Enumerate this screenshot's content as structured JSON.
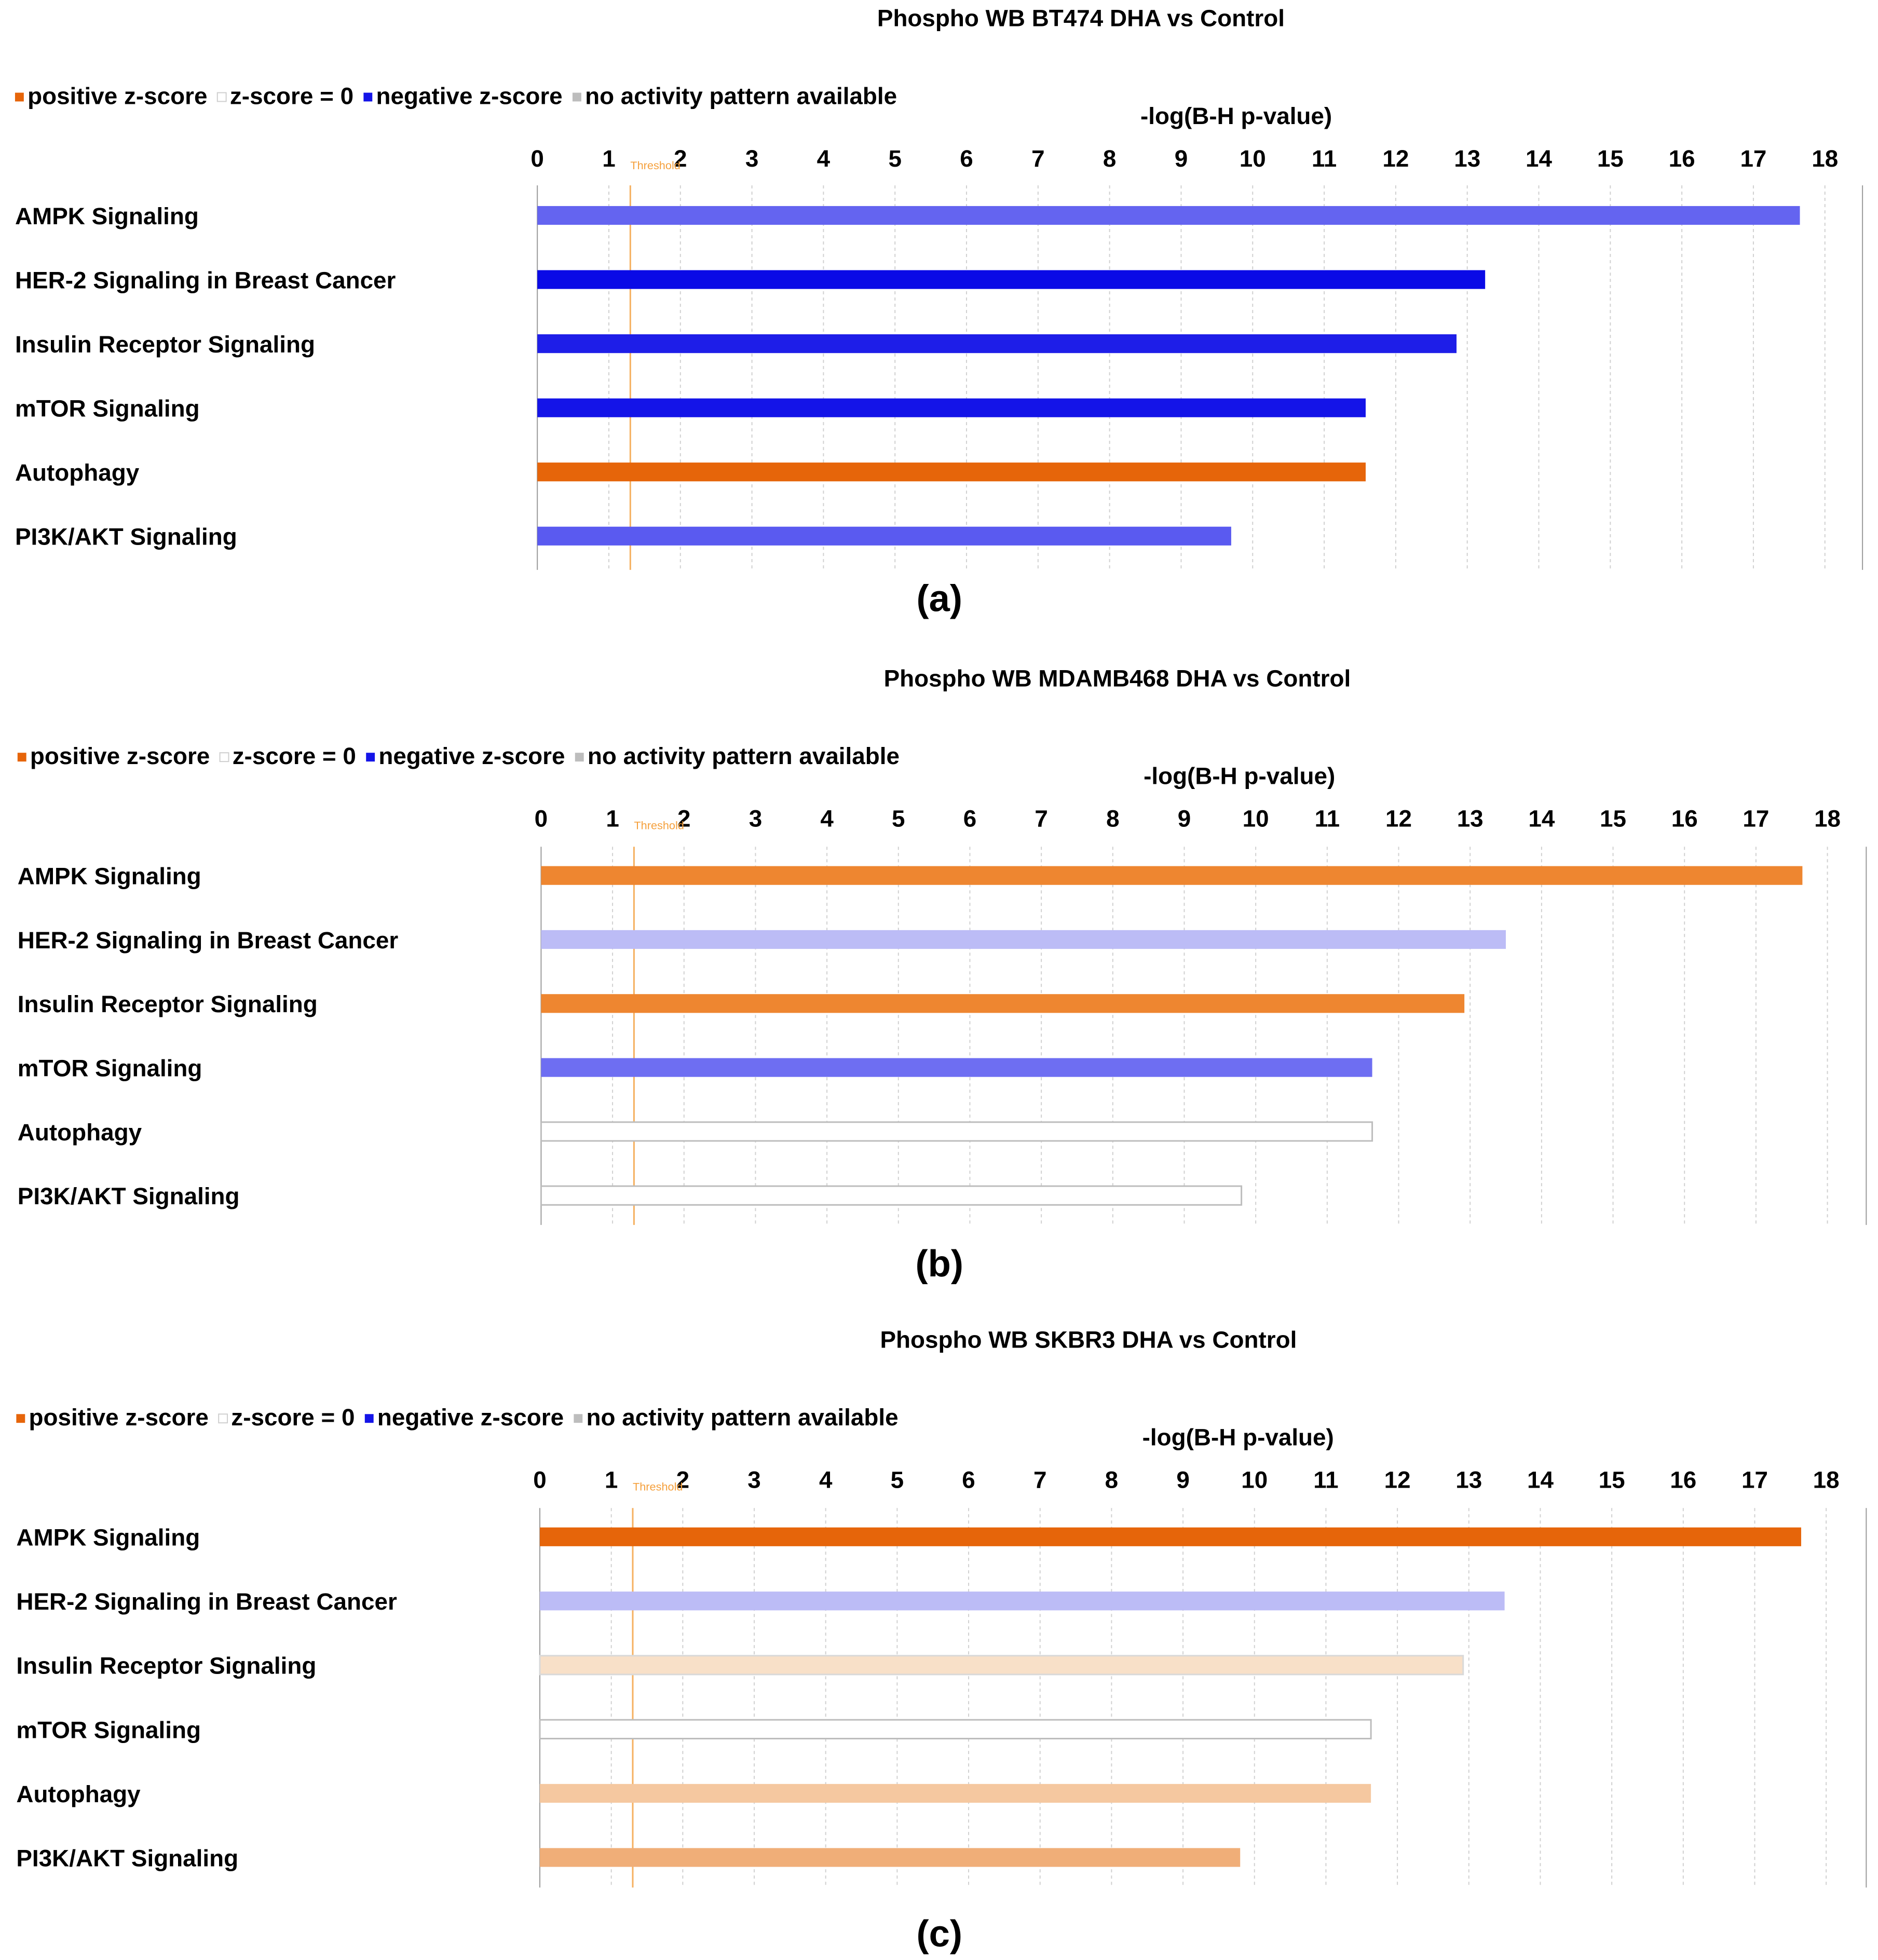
{
  "chart_data": [
    {
      "type": "bar",
      "orientation": "horizontal",
      "panel_label": "(a)",
      "title": "Phospho WB BT474 DHA vs Control",
      "xlabel": "-log(B-H p-value)",
      "xlim": [
        0,
        18.5
      ],
      "ticks": [
        "0",
        "1",
        "2",
        "3",
        "4",
        "5",
        "6",
        "7",
        "8",
        "9",
        "10",
        "11",
        "12",
        "13",
        "14",
        "15",
        "16",
        "17",
        "18"
      ],
      "threshold": {
        "value": 1.3,
        "label": "Threshold"
      },
      "categories": [
        "AMPK Signaling",
        "HER-2 Signaling in Breast Cancer",
        "Insulin Receptor Signaling",
        "mTOR Signaling",
        "Autophagy",
        "PI3K/AKT Signaling"
      ],
      "values": [
        17.65,
        13.25,
        12.85,
        11.58,
        11.58,
        9.7
      ],
      "bar_colors": [
        "#6464f0",
        "#0a0ae6",
        "#1e1ee8",
        "#1414e8",
        "#e6650a",
        "#5a5af0"
      ],
      "bar_borders": [
        "none",
        "none",
        "none",
        "none",
        "none",
        "none"
      ],
      "legend": [
        {
          "label": "positive z-score",
          "color": "#e6650a"
        },
        {
          "label": "z-score = 0",
          "color": "#ffffff"
        },
        {
          "label": "negative z-score",
          "color": "#1414e8"
        },
        {
          "label": "no activity pattern available",
          "color": "#bdbdbd"
        }
      ]
    },
    {
      "type": "bar",
      "orientation": "horizontal",
      "panel_label": "(b)",
      "title": "Phospho WB MDAMB468 DHA vs Control",
      "xlabel": "-log(B-H p-value)",
      "xlim": [
        0,
        18.5
      ],
      "ticks": [
        "0",
        "1",
        "2",
        "3",
        "4",
        "5",
        "6",
        "7",
        "8",
        "9",
        "10",
        "11",
        "12",
        "13",
        "14",
        "15",
        "16",
        "17",
        "18"
      ],
      "threshold": {
        "value": 1.3,
        "label": "Threshold"
      },
      "categories": [
        "AMPK Signaling",
        "HER-2 Signaling in Breast Cancer",
        "Insulin Receptor Signaling",
        "mTOR Signaling",
        "Autophagy",
        "PI3K/AKT Signaling"
      ],
      "values": [
        17.65,
        13.5,
        12.92,
        11.63,
        11.63,
        9.8
      ],
      "bar_colors": [
        "#ee8630",
        "#bcbcf6",
        "#ee8630",
        "#6e6ef2",
        "#ffffff",
        "#ffffff"
      ],
      "bar_borders": [
        "none",
        "none",
        "none",
        "none",
        "#bdbdbd",
        "#bdbdbd"
      ],
      "legend": [
        {
          "label": "positive z-score",
          "color": "#e6650a"
        },
        {
          "label": "z-score = 0",
          "color": "#ffffff"
        },
        {
          "label": "negative z-score",
          "color": "#1414e8"
        },
        {
          "label": "no activity pattern available",
          "color": "#bdbdbd"
        }
      ]
    },
    {
      "type": "bar",
      "orientation": "horizontal",
      "panel_label": "(c)",
      "title": "Phospho WB SKBR3 DHA vs Control",
      "xlabel": "-log(B-H p-value)",
      "xlim": [
        0,
        18.5
      ],
      "ticks": [
        "0",
        "1",
        "2",
        "3",
        "4",
        "5",
        "6",
        "7",
        "8",
        "9",
        "10",
        "11",
        "12",
        "13",
        "14",
        "15",
        "16",
        "17",
        "18"
      ],
      "threshold": {
        "value": 1.3,
        "label": "Threshold"
      },
      "categories": [
        "AMPK Signaling",
        "HER-2 Signaling in Breast Cancer",
        "Insulin Receptor Signaling",
        "mTOR Signaling",
        "Autophagy",
        "PI3K/AKT Signaling"
      ],
      "values": [
        17.65,
        13.5,
        12.92,
        11.63,
        11.63,
        9.8
      ],
      "bar_colors": [
        "#e6650a",
        "#bcbcf6",
        "#f8e0c8",
        "#ffffff",
        "#f5c8a0",
        "#f0ae78"
      ],
      "bar_borders": [
        "none",
        "none",
        "#d9d9d9",
        "#bdbdbd",
        "none",
        "none"
      ],
      "legend": [
        {
          "label": "positive z-score",
          "color": "#e6650a"
        },
        {
          "label": "z-score = 0",
          "color": "#ffffff"
        },
        {
          "label": "negative z-score",
          "color": "#1414e8"
        },
        {
          "label": "no activity pattern available",
          "color": "#bdbdbd"
        }
      ]
    }
  ]
}
